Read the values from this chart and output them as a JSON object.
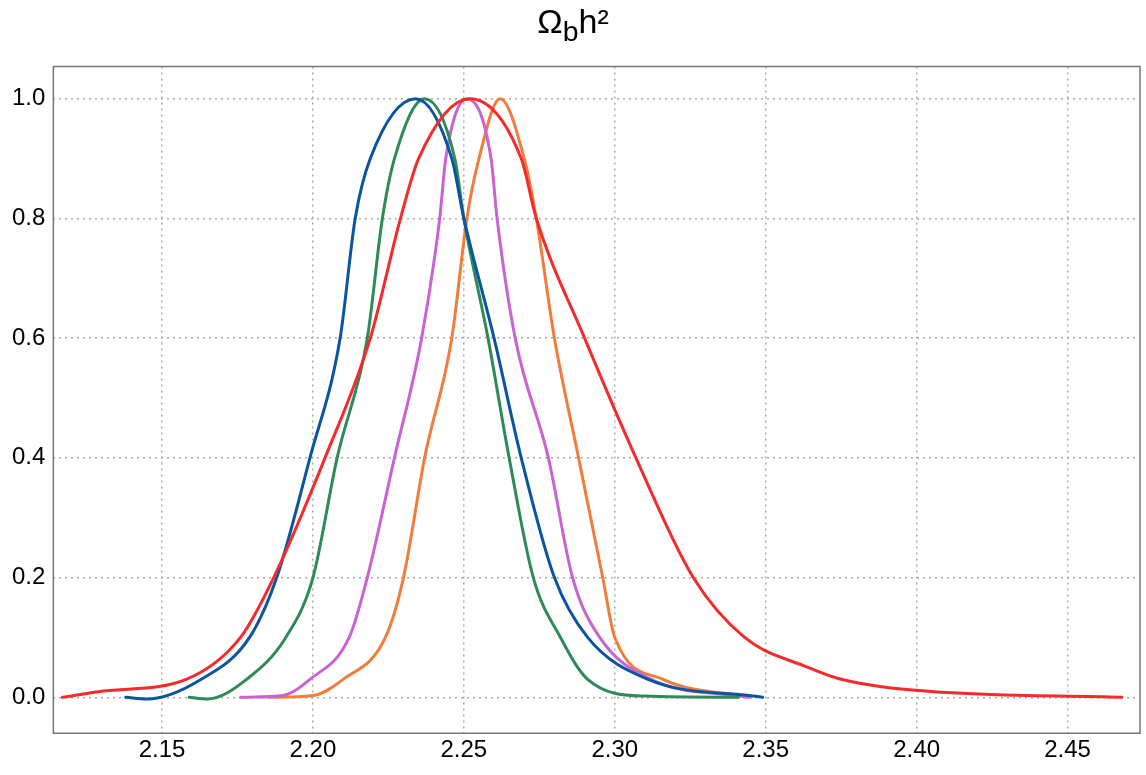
{
  "chart_data": {
    "type": "line",
    "title": "Ω$_{b}$h²",
    "xlim": [
      2.114,
      2.474
    ],
    "ylim": [
      -0.06,
      1.054
    ],
    "xticks": [
      {
        "value": 2.15,
        "label": "2.15"
      },
      {
        "value": 2.2,
        "label": "2.20"
      },
      {
        "value": 2.25,
        "label": "2.25"
      },
      {
        "value": 2.3,
        "label": "2.30"
      },
      {
        "value": 2.35,
        "label": "2.35"
      },
      {
        "value": 2.4,
        "label": "2.40"
      },
      {
        "value": 2.45,
        "label": "2.45"
      }
    ],
    "yticks": [
      {
        "value": 0,
        "label": "0.0"
      },
      {
        "value": 0.2,
        "label": "0.2"
      },
      {
        "value": 0.4,
        "label": "0.4"
      },
      {
        "value": 0.6,
        "label": "0.6"
      },
      {
        "value": 0.8,
        "label": "0.8"
      },
      {
        "value": 1,
        "label": "1.0"
      }
    ],
    "grid": true,
    "legend": false,
    "marker": "none",
    "line_style": "solid",
    "series": [
      {
        "color": "#f52a2a",
        "x": [
          2.117,
          2.13,
          2.158,
          2.176,
          2.187,
          2.204,
          2.219,
          2.229,
          2.235,
          2.252,
          2.269,
          2.274,
          2.29,
          2.307,
          2.326,
          2.343,
          2.364,
          2.375,
          2.404,
          2.468
        ],
        "values": [
          0,
          0.01,
          0.03,
          0.1,
          0.2,
          0.4,
          0.6,
          0.8,
          0.9,
          1,
          0.9,
          0.8,
          0.6,
          0.4,
          0.2,
          0.1,
          0.05,
          0.03,
          0.01,
          0
        ]
      },
      {
        "color": "#0a54a0",
        "x": [
          2.138,
          2.145,
          2.163,
          2.179,
          2.188,
          2.199,
          2.209,
          2.214,
          2.219,
          2.234,
          2.246,
          2.25,
          2.26,
          2.269,
          2.28,
          2.291,
          2.311,
          2.349
        ],
        "values": [
          0,
          -0.003,
          0.03,
          0.1,
          0.2,
          0.4,
          0.6,
          0.8,
          0.9,
          1,
          0.9,
          0.8,
          0.6,
          0.4,
          0.2,
          0.1,
          0.03,
          0
        ]
      },
      {
        "color": "#2e8b57",
        "x": [
          2.159,
          2.165,
          2.178,
          2.191,
          2.2,
          2.208,
          2.218,
          2.223,
          2.227,
          2.237,
          2.247,
          2.25,
          2.258,
          2.265,
          2.273,
          2.282,
          2.291,
          2.31,
          2.341
        ],
        "values": [
          0,
          -0.003,
          0.03,
          0.1,
          0.2,
          0.4,
          0.6,
          0.8,
          0.9,
          1,
          0.9,
          0.8,
          0.6,
          0.4,
          0.2,
          0.1,
          0.03,
          0.002,
          0
        ]
      },
      {
        "color": "#c864d2",
        "x": [
          2.176,
          2.19,
          2.199,
          2.212,
          2.218,
          2.227,
          2.236,
          2.242,
          2.244,
          2.251,
          2.259,
          2.261,
          2.267,
          2.278,
          2.286,
          2.295,
          2.312,
          2.344
        ],
        "values": [
          0,
          0.003,
          0.03,
          0.1,
          0.2,
          0.4,
          0.6,
          0.8,
          0.9,
          1,
          0.9,
          0.8,
          0.6,
          0.4,
          0.2,
          0.1,
          0.03,
          0
        ]
      },
      {
        "color": "#f07d3c",
        "x": [
          2.185,
          2.2,
          2.21,
          2.224,
          2.23,
          2.237,
          2.246,
          2.251,
          2.255,
          2.262,
          2.27,
          2.274,
          2.28,
          2.288,
          2.296,
          2.3,
          2.316,
          2.345
        ],
        "values": [
          0,
          0.003,
          0.03,
          0.1,
          0.2,
          0.4,
          0.6,
          0.8,
          0.9,
          1,
          0.9,
          0.8,
          0.6,
          0.4,
          0.2,
          0.1,
          0.03,
          0
        ]
      }
    ]
  }
}
